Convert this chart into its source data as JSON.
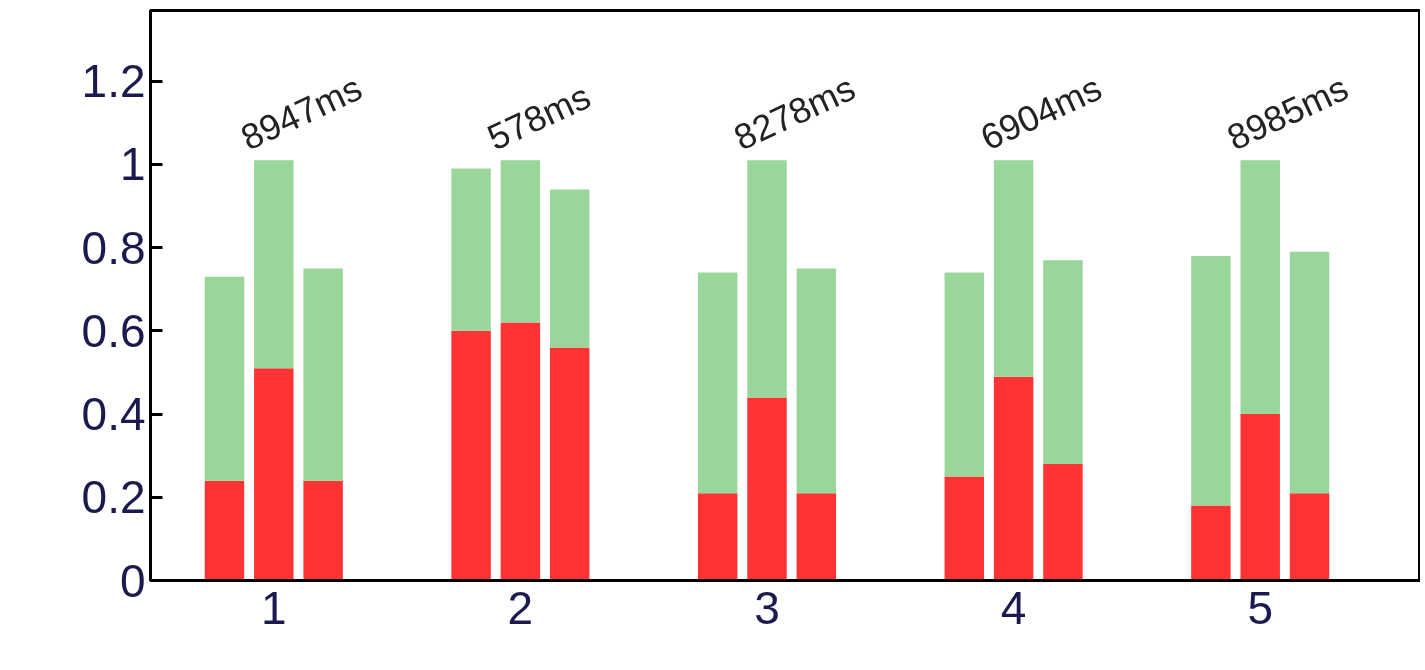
{
  "chart_data": {
    "type": "bar",
    "stacked": true,
    "x": [
      0.8,
      1.0,
      1.2,
      1.8,
      2.0,
      2.2,
      2.8,
      3.0,
      3.2,
      3.8,
      4.0,
      4.2,
      4.8,
      5.0,
      5.2
    ],
    "series": [
      {
        "color": "#ff3333",
        "values": [
          0.24,
          0.51,
          0.24,
          0.6,
          0.62,
          0.56,
          0.21,
          0.44,
          0.21,
          0.25,
          0.49,
          0.28,
          0.18,
          0.4,
          0.21
        ]
      },
      {
        "color": "#99d699",
        "values": [
          0.49,
          0.5,
          0.51,
          0.39,
          0.39,
          0.38,
          0.53,
          0.57,
          0.54,
          0.49,
          0.52,
          0.49,
          0.6,
          0.61,
          0.58
        ]
      }
    ],
    "xlim": [
      0.5,
      5.65
    ],
    "xticks": [
      1,
      2,
      3,
      4,
      5
    ],
    "ylim": [
      0,
      1.37
    ],
    "yticks": [
      0,
      0.2,
      0.4,
      0.6,
      0.8,
      1,
      1.2
    ],
    "grid": false,
    "annotations": [
      {
        "text": "8947ms",
        "x": 1,
        "y": 1.01
      },
      {
        "text": "578ms",
        "x": 2,
        "y": 1.01
      },
      {
        "text": "8278ms",
        "x": 3,
        "y": 1.01
      },
      {
        "text": "6904ms",
        "x": 4,
        "y": 1.01
      },
      {
        "text": "8985ms",
        "x": 5,
        "y": 1.01
      }
    ]
  }
}
